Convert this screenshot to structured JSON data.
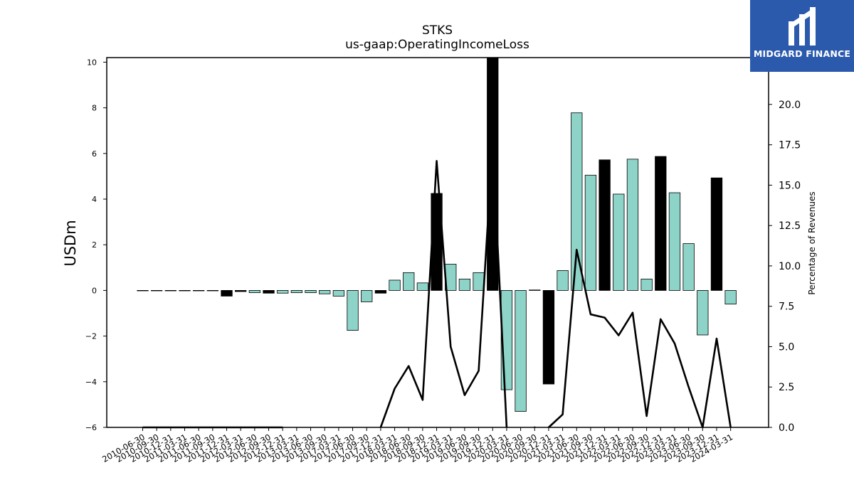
{
  "chart_data": {
    "type": "bar",
    "title": "STKS",
    "subtitle": "us-gaap:OperatingIncomeLoss",
    "ylabel": "USDm",
    "ylabel_right": "Percentage of Revenues",
    "ylim": [
      -6,
      10.2
    ],
    "ylim_right": [
      0,
      22.9
    ],
    "yticks": [
      -6,
      -4,
      -2,
      0,
      2,
      4,
      6,
      8,
      10
    ],
    "yticks_right": [
      "0.0",
      "2.5",
      "5.0",
      "7.5",
      "10.0",
      "12.5",
      "15.0",
      "17.5",
      "20.0"
    ],
    "categories": [
      "2010-06-30",
      "2010-09-30",
      "2010-12-31",
      "2011-03-31",
      "2011-06-30",
      "2011-09-30",
      "2011-12-31",
      "2012-03-31",
      "2012-06-30",
      "2012-09-30",
      "2012-12-31",
      "2013-03-31",
      "2013-06-30",
      "2013-09-30",
      "2017-03-31",
      "2017-06-30",
      "2017-09-30",
      "2017-12-31",
      "2018-03-31",
      "2018-06-30",
      "2018-09-30",
      "2018-12-31",
      "2019-03-31",
      "2019-06-30",
      "2019-09-30",
      "2019-12-31",
      "2020-03-31",
      "2020-06-30",
      "2020-09-30",
      "2020-12-31",
      "2021-03-31",
      "2021-06-30",
      "2021-09-30",
      "2021-12-31",
      "2022-03-31",
      "2022-06-30",
      "2022-09-30",
      "2022-12-31",
      "2023-03-31",
      "2023-06-30",
      "2023-09-30",
      "2023-12-31",
      "2024-03-31"
    ],
    "series": [
      {
        "values": [
          0.0,
          0.0,
          0.0,
          0.0,
          0.0,
          0.0,
          -0.25,
          -0.05,
          -0.1,
          -0.12,
          -0.12,
          -0.1,
          -0.1,
          -0.15,
          -0.25,
          -1.75,
          -0.5,
          -0.12,
          0.45,
          0.78,
          0.33,
          4.25,
          1.15,
          0.5,
          0.78,
          10.2,
          -4.35,
          -5.3,
          0.02,
          -4.1,
          0.87,
          7.78,
          5.05,
          5.72,
          4.22,
          5.75,
          0.5,
          5.87,
          4.28,
          2.05,
          -1.95,
          4.93,
          -0.6
        ],
        "highlight": [
          false,
          false,
          false,
          false,
          false,
          false,
          true,
          true,
          false,
          true,
          false,
          false,
          false,
          false,
          false,
          false,
          false,
          true,
          false,
          false,
          false,
          true,
          false,
          false,
          false,
          true,
          false,
          false,
          true,
          true,
          false,
          false,
          false,
          true,
          false,
          false,
          false,
          true,
          false,
          false,
          false,
          true,
          false
        ],
        "color": "#8dd3c7",
        "highlight_color": "#000000"
      },
      {
        "type": "line",
        "axis": "right",
        "color": "#000000",
        "segments": [
          [
            [
              0,
              0
            ],
            [
              1,
              0
            ],
            [
              2,
              0
            ],
            [
              3,
              0
            ],
            [
              4,
              0
            ],
            [
              5,
              0
            ],
            [
              6,
              0
            ],
            [
              7,
              0
            ],
            [
              8,
              0
            ],
            [
              9,
              0
            ],
            [
              10,
              0
            ]
          ],
          [
            [
              17,
              0
            ],
            [
              18,
              2.4
            ],
            [
              19,
              3.8
            ],
            [
              20,
              1.7
            ],
            [
              21,
              16.5
            ],
            [
              22,
              5.0
            ],
            [
              23,
              2.0
            ],
            [
              24,
              3.5
            ],
            [
              25,
              17.5
            ]
          ],
          [
            [
              25,
              17.5
            ],
            [
              26,
              0
            ]
          ],
          [
            [
              28,
              0.05
            ],
            [
              28,
              0
            ]
          ],
          [
            [
              29,
              0
            ],
            [
              30,
              0.8
            ],
            [
              31,
              11.0
            ],
            [
              32,
              7.0
            ],
            [
              33,
              6.8
            ],
            [
              34,
              5.7
            ],
            [
              35,
              7.1
            ],
            [
              36,
              0.7
            ],
            [
              37,
              6.7
            ],
            [
              38,
              5.2
            ],
            [
              39,
              2.5
            ],
            [
              40,
              0
            ],
            [
              41,
              5.5
            ],
            [
              42,
              0
            ]
          ]
        ]
      }
    ],
    "grid": false,
    "legend": "none"
  },
  "logo": {
    "text": "MIDGARD FINANCE"
  }
}
